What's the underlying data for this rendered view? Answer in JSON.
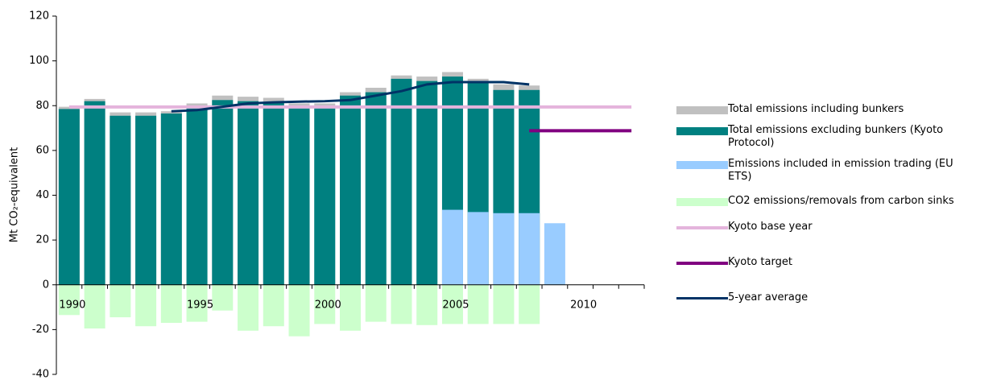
{
  "chart_data": {
    "type": "bar",
    "y_label": "Mt CO₂-equivalent",
    "categories": [
      "1990",
      null,
      null,
      null,
      null,
      "1995",
      null,
      null,
      null,
      null,
      "2000",
      null,
      null,
      null,
      null,
      "2005",
      null,
      null,
      null,
      null,
      "2010",
      null,
      null
    ],
    "ylim": [
      -40,
      120
    ],
    "yticks": [
      -40,
      -20,
      0,
      20,
      40,
      60,
      80,
      100,
      120
    ],
    "series": [
      {
        "name": "Total emissions including bunkers",
        "kind": "bar",
        "color": "#c0c0c0",
        "values": [
          79.5,
          83,
          77,
          77,
          77.5,
          81,
          84.5,
          84,
          83.5,
          81,
          81,
          86,
          88,
          93.5,
          93,
          95,
          92,
          89.5,
          89,
          null,
          null,
          null,
          null
        ]
      },
      {
        "name": "Total emissions excluding bunkers (Kyoto Protocol)",
        "kind": "bar",
        "color": "#008080",
        "values": [
          78.5,
          82,
          75.5,
          75.5,
          76.5,
          79.5,
          82.5,
          82,
          81.5,
          79.5,
          79.5,
          84.5,
          86,
          92,
          91,
          93,
          90.5,
          87,
          87,
          null,
          null,
          null,
          null
        ]
      },
      {
        "name": "Emissions included in emission trading (EU ETS)",
        "kind": "bar",
        "color": "#99ccff",
        "values": [
          null,
          null,
          null,
          null,
          null,
          null,
          null,
          null,
          null,
          null,
          null,
          null,
          null,
          null,
          null,
          33.5,
          32.5,
          32,
          32,
          27.5,
          null,
          null,
          null
        ]
      },
      {
        "name": "CO2 emissions/removals from carbon sinks",
        "kind": "bar",
        "color": "#ccffcc",
        "values": [
          -13.5,
          -19.5,
          -14.5,
          -18.5,
          -17,
          -16.5,
          -11.5,
          -20.5,
          -18.5,
          -23,
          -17.5,
          -20.5,
          -16.5,
          -17.5,
          -18,
          -17.5,
          -17.5,
          -17.5,
          -17.5,
          null,
          null,
          null,
          null
        ]
      },
      {
        "name": "Kyoto base year",
        "kind": "line",
        "color": "#e4b4dc",
        "width": 4,
        "values": [
          79.4,
          79.4,
          79.4,
          79.4,
          79.4,
          79.4,
          79.4,
          79.4,
          79.4,
          79.4,
          79.4,
          79.4,
          79.4,
          79.4,
          79.4,
          79.4,
          79.4,
          79.4,
          79.4,
          79.4,
          79.4,
          79.4,
          79.4
        ]
      },
      {
        "name": "Kyoto target",
        "kind": "line",
        "color": "#800080",
        "width": 4,
        "values": [
          null,
          null,
          null,
          null,
          null,
          null,
          null,
          null,
          null,
          null,
          null,
          null,
          null,
          null,
          null,
          null,
          null,
          null,
          68.8,
          68.8,
          68.8,
          68.8,
          68.8
        ]
      },
      {
        "name": "5-year average",
        "kind": "line",
        "color": "#003366",
        "width": 3,
        "values": [
          null,
          null,
          null,
          null,
          77.5,
          78,
          79.5,
          81,
          81.5,
          81.8,
          82,
          82.5,
          84.5,
          86.5,
          89.5,
          90.5,
          90.5,
          90.5,
          89.5,
          null,
          null,
          null,
          null
        ]
      }
    ]
  }
}
